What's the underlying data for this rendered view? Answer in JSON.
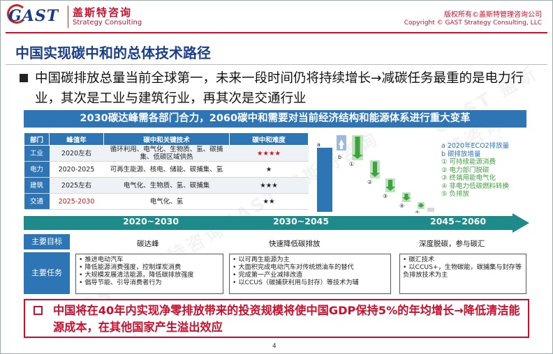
{
  "header": {
    "logo_text": "GAST",
    "brand_cn": "盖斯特咨询",
    "brand_en": "Strategy Consulting",
    "copyright_cn": "版权所有©盖斯特管理咨询公司",
    "copyright_en": "Copyright © GAST Strategy Consulting, LLC"
  },
  "slide": {
    "title": "中国实现碳中和的总体技术路径",
    "main_point": "中国碳排放总量当前全球第一，未来一段时间仍将持续增长→减碳任务最重的是电力行业，其次是工业与建筑行业，再其次是交通行业",
    "banner": "2030碳达峰需各部门合力，2060碳中和需要对当前经济结构和能源体系进行重大变革"
  },
  "table": {
    "headers": [
      "部门",
      "峰值年",
      "碳中和关键技术",
      "碳中和难度"
    ],
    "rows": [
      {
        "sector": "工业",
        "peak": "2020左右",
        "tech": "循环利用、电气化、生物质、氢、碳捕集、低碳区域供热",
        "difficulty": "★★★★",
        "difficulty_red": true,
        "peak_red": false
      },
      {
        "sector": "电力",
        "peak": "2020-2025",
        "tech": "可再生能源、核电、储能、碳捕集、氢",
        "difficulty": "★",
        "difficulty_red": false,
        "peak_red": false
      },
      {
        "sector": "建筑",
        "peak": "2025左右",
        "tech": "电气化、生物质、氢、碳捕集",
        "difficulty": "★★★",
        "difficulty_red": false,
        "peak_red": false
      },
      {
        "sector": "交通",
        "peak": "2025-2030",
        "tech": "电气化、氢",
        "difficulty": "★★",
        "difficulty_red": false,
        "peak_red": true
      }
    ]
  },
  "waterfall": {
    "bar_a_label": "a",
    "bar_b_label": "b",
    "steps": [
      "①",
      "②",
      "③",
      "④",
      "⑤"
    ],
    "legend": {
      "a": "a 2020年ECO2排放量",
      "b": "b 碳排放增量",
      "items": [
        "① 可持续能源消费",
        "② 电力部门脱碳",
        "③ 终端用能电气化",
        "④ 非电力低碳燃料转换",
        "⑤ 负排放"
      ]
    },
    "colors": {
      "blue": "#2e75b6",
      "green": "#3fa13f"
    }
  },
  "timeline": {
    "periods": [
      "2020~2030",
      "2030~2045",
      "2045~2060"
    ],
    "goal_label": "主要目标",
    "goals": [
      "碳达峰",
      "快速降低碳排放",
      "深度脱碳，参与碳汇"
    ],
    "task_label": "主要任务",
    "tasks": [
      [
        "推进电动汽车",
        "降低能源消费强度，控制煤炭消费",
        "大规模发展清洁能源，降低碳排放强度",
        "倡导节能、引导消费者行为"
      ],
      [
        "以可再生能源为主",
        "大面积完成电动汽车对传统燃油车的替代",
        "完成第一产业减排改造",
        "以CCUS（碳捕获利用与封存）等技术为辅"
      ],
      [
        "碳汇技术",
        "以CCUS+，生物碳能，碳捕集与封存等负排放技术为主"
      ]
    ]
  },
  "conclusion": "中国将在40年内实现净零排放带来的投资规模将使中国GDP保持5%的年均增长→降低清洁能源成本，在其他国家产生溢出效应",
  "page_number": "4",
  "watermark": "GAST 盖斯特咨询"
}
